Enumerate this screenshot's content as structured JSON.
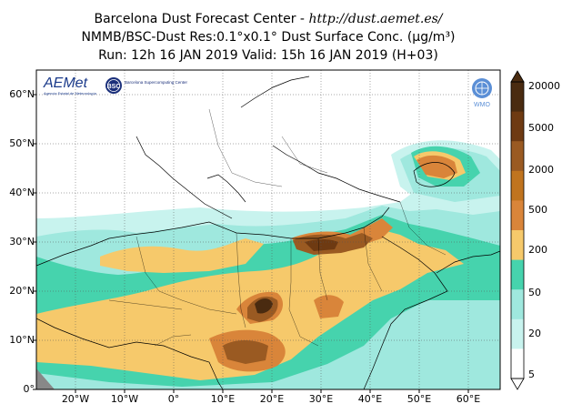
{
  "title": {
    "line1_prefix": "Barcelona Dust Forecast Center - ",
    "line1_url": "http://dust.aemet.es/",
    "line2": "NMMB/BSC-Dust   Res:0.1°x0.1°   Dust Surface Conc. (µg/m³)",
    "line3": "Run: 12h 16 JAN 2019   Valid: 15h 16 JAN 2019 (H+03)"
  },
  "logos": {
    "aemet": "AEMet",
    "aemet_sub": "Agencia Estatal de Meteorología",
    "bsc": "BSC",
    "bsc_sub": "Barcelona Supercomputing Center",
    "wmo": "WMO"
  },
  "map": {
    "lat_labels": [
      "60°N",
      "50°N",
      "40°N",
      "30°N",
      "20°N",
      "10°N",
      "0°"
    ],
    "lon_labels": [
      "20°W",
      "10°W",
      "0°",
      "10°E",
      "20°E",
      "30°E",
      "40°E",
      "50°E",
      "60°E"
    ]
  },
  "colorbar": {
    "labels": [
      "20000",
      "5000",
      "2000",
      "500",
      "200",
      "50",
      "20",
      "5"
    ],
    "colors": [
      "#4a2b10",
      "#6e3a12",
      "#9a5a22",
      "#c0741f",
      "#d9853a",
      "#f6c96b",
      "#46d3ad",
      "#9fe8de",
      "#c8f3ee",
      "#ffffff"
    ]
  }
}
